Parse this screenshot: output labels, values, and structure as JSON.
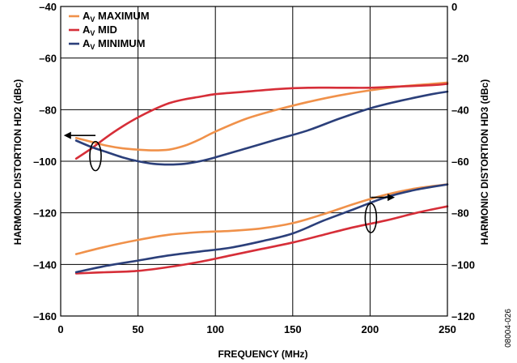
{
  "chart_data": {
    "type": "line",
    "xlabel": "FREQUENCY (MHz)",
    "ylabel_left": "HARMONIC DISTORTION HD2 (dBc)",
    "ylabel_right": "HARMONIC DISTORTION HD3 (dBc)",
    "xlim": [
      0,
      250
    ],
    "ylim_left": [
      -160,
      -40
    ],
    "ylim_right": [
      -120,
      0
    ],
    "x_ticks": [
      0,
      50,
      100,
      150,
      200,
      250
    ],
    "y_ticks_left": [
      -40,
      -60,
      -80,
      -100,
      -120,
      -140,
      -160
    ],
    "y_ticks_right": [
      0,
      -20,
      -40,
      -60,
      -80,
      -100,
      -120
    ],
    "x_tick_labels": [
      "0",
      "50",
      "100",
      "150",
      "200",
      "250"
    ],
    "y_tick_labels_left": [
      "–40",
      "–60",
      "–80",
      "–100",
      "–120",
      "–140",
      "–160"
    ],
    "y_tick_labels_right": [
      "0",
      "–20",
      "–40",
      "–60",
      "–80",
      "–100",
      "–120"
    ],
    "grid": true,
    "legend_position": "top-left",
    "legend": [
      {
        "base": "A",
        "sub": "V",
        "rest": " MAXIMUM",
        "color": "#F0914A"
      },
      {
        "base": "A",
        "sub": "V",
        "rest": " MID",
        "color": "#D62E38"
      },
      {
        "base": "A",
        "sub": "V",
        "rest": " MINIMUM",
        "color": "#2B3F7A"
      }
    ],
    "series": [
      {
        "group": "HD2",
        "axis": "left",
        "legend_index": 0,
        "color": "#F0914A",
        "x": [
          10,
          20,
          30,
          40,
          50,
          60,
          70,
          80,
          90,
          100,
          120,
          140,
          160,
          180,
          200,
          220,
          240,
          250
        ],
        "y": [
          -91,
          -92.5,
          -94,
          -95,
          -95.5,
          -95.8,
          -95.5,
          -94,
          -91.5,
          -88.5,
          -83.5,
          -80,
          -77,
          -74.5,
          -72.5,
          -71,
          -70,
          -69.5
        ]
      },
      {
        "group": "HD2",
        "axis": "left",
        "legend_index": 1,
        "color": "#D62E38",
        "x": [
          10,
          20,
          30,
          40,
          50,
          60,
          70,
          80,
          90,
          100,
          120,
          140,
          160,
          180,
          200,
          220,
          240,
          250
        ],
        "y": [
          -99,
          -95,
          -90.5,
          -86.5,
          -83,
          -80,
          -77.5,
          -76,
          -75,
          -74,
          -73,
          -72,
          -71.5,
          -71.5,
          -71.5,
          -71,
          -70.5,
          -70
        ]
      },
      {
        "group": "HD2",
        "axis": "left",
        "legend_index": 2,
        "color": "#2B3F7A",
        "x": [
          10,
          20,
          30,
          40,
          50,
          60,
          70,
          80,
          90,
          100,
          120,
          140,
          160,
          180,
          200,
          220,
          240,
          250
        ],
        "y": [
          -92,
          -94.5,
          -96.5,
          -98.5,
          -100,
          -101,
          -101.3,
          -101,
          -100,
          -98.5,
          -95,
          -91.5,
          -88,
          -83.5,
          -79.5,
          -76.5,
          -74,
          -73
        ]
      },
      {
        "group": "HD3",
        "axis": "right",
        "legend_index": 0,
        "color": "#F0914A",
        "x": [
          10,
          30,
          50,
          70,
          90,
          110,
          130,
          150,
          170,
          190,
          210,
          230,
          250
        ],
        "y": [
          -96,
          -93,
          -90.5,
          -88.5,
          -87.5,
          -87,
          -86,
          -84,
          -80.5,
          -76.5,
          -73,
          -70.5,
          -69
        ]
      },
      {
        "group": "HD3",
        "axis": "right",
        "legend_index": 1,
        "color": "#D62E38",
        "x": [
          10,
          30,
          50,
          70,
          90,
          110,
          130,
          150,
          170,
          190,
          210,
          230,
          250
        ],
        "y": [
          -103.5,
          -103,
          -102.5,
          -101,
          -99,
          -96.5,
          -94,
          -91.5,
          -88.5,
          -85.5,
          -83,
          -80,
          -77.5
        ]
      },
      {
        "group": "HD3",
        "axis": "right",
        "legend_index": 2,
        "color": "#2B3F7A",
        "x": [
          10,
          30,
          50,
          70,
          90,
          110,
          130,
          150,
          170,
          190,
          210,
          230,
          250
        ],
        "y": [
          -103,
          -100.5,
          -98.5,
          -96.5,
          -95,
          -93.5,
          -91,
          -88,
          -83,
          -78.5,
          -74,
          -71,
          -69
        ]
      }
    ],
    "annotations": [
      {
        "type": "axis-indicator",
        "group": "HD2",
        "points_to": "left-axis"
      },
      {
        "type": "axis-indicator",
        "group": "HD3",
        "points_to": "right-axis"
      }
    ],
    "figure_code": "08004-026"
  }
}
